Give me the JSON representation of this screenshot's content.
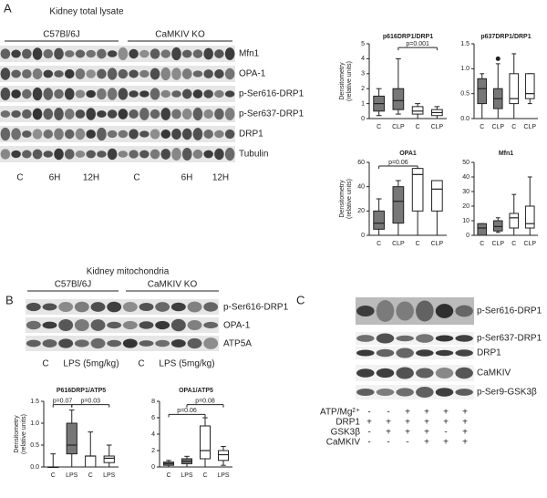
{
  "panels": {
    "A": {
      "label": "A",
      "title": "Kidney total lysate",
      "groups": [
        "C57Bl/6J",
        "CaMKIV KO"
      ],
      "rows": [
        "Mfn1",
        "OPA-1",
        "p-Ser616-DRP1",
        "p-Ser637-DRP1",
        "DRP1",
        "Tubulin"
      ],
      "lanes": [
        "C",
        "6H",
        "12H",
        "C",
        "6H",
        "12H"
      ]
    },
    "B": {
      "label": "B",
      "title": "Kidney mitochondria",
      "groups": [
        "C57Bl/6J",
        "CaMKIV KO"
      ],
      "rows": [
        "p-Ser616-DRP1",
        "OPA-1",
        "ATP5A"
      ],
      "lanes": [
        "C",
        "LPS (5mg/kg)",
        "C",
        "LPS (5mg/kg)"
      ]
    },
    "C": {
      "label": "C",
      "rows": [
        "p-Ser616-DRP1",
        "p-Ser637-DRP1",
        "DRP1",
        "CaMKIV",
        "p-Ser9-GSK3β"
      ],
      "conditions": [
        {
          "name": "ATP/Mg²⁺",
          "signs": [
            "-",
            "-",
            "+",
            "+",
            "+",
            "+"
          ]
        },
        {
          "name": "DRP1",
          "signs": [
            "+",
            "+",
            "+",
            "+",
            "+",
            "+"
          ]
        },
        {
          "name": "GSK3β",
          "signs": [
            "-",
            "+",
            "+",
            "+",
            "-",
            "+"
          ]
        },
        {
          "name": "CaMKIV",
          "signs": [
            "-",
            "-",
            "-",
            "+",
            "+",
            "+"
          ]
        }
      ]
    }
  },
  "charts": [
    {
      "type": "box",
      "title": "p616DRP1/DRP1",
      "ylabel": [
        "Densitometry",
        "(relative units)"
      ],
      "categories": [
        "C",
        "CLP",
        "C",
        "CLP"
      ],
      "ylim": [
        0,
        5
      ],
      "yticks": [
        0,
        1,
        2,
        3,
        4,
        5
      ],
      "boxes": [
        {
          "min": 0.2,
          "q1": 0.5,
          "median": 1,
          "q3": 1.5,
          "max": 2,
          "color": "#777"
        },
        {
          "min": 0.3,
          "q1": 0.6,
          "median": 1.2,
          "q3": 2,
          "max": 4,
          "color": "#777"
        },
        {
          "min": 0,
          "q1": 0.3,
          "median": 0.5,
          "q3": 0.8,
          "max": 1,
          "color": "#fff"
        },
        {
          "min": 0,
          "q1": 0.2,
          "median": 0.4,
          "q3": 0.6,
          "max": 0.8,
          "color": "#fff"
        }
      ],
      "annotations": [
        "p=0.001"
      ]
    },
    {
      "type": "box",
      "title": "p637DRP1/DRP1",
      "categories": [
        "C",
        "CLP",
        "C",
        "CLP"
      ],
      "ylim": [
        0,
        1.5
      ],
      "yticks": [
        {
          "value": 0,
          "label": "0.0"
        },
        0.5,
        {
          "value": 1,
          "label": "1.0"
        },
        1.5
      ],
      "boxes": [
        {
          "min": 0,
          "q1": 0.3,
          "median": 0.6,
          "q3": 0.8,
          "max": 0.9,
          "color": "#777"
        },
        {
          "min": 0,
          "q1": 0.2,
          "median": 0.4,
          "q3": 0.6,
          "max": 1.1,
          "color": "#777",
          "outliers": [
            1.2
          ]
        },
        {
          "min": 0,
          "q1": 0.3,
          "median": 0.4,
          "q3": 0.9,
          "max": 1.3,
          "color": "#fff"
        },
        {
          "min": 0.3,
          "q1": 0.4,
          "median": 0.5,
          "q3": 0.9,
          "max": 0.9,
          "color": "#fff"
        }
      ]
    },
    {
      "type": "box",
      "title": "OPA1",
      "ylabel": [
        "Densitometry",
        "(relative units)"
      ],
      "categories": [
        "C",
        "CLP",
        "C",
        "CLP"
      ],
      "ylim": [
        0,
        60
      ],
      "yticks": [
        0,
        20,
        40,
        60
      ],
      "boxes": [
        {
          "min": 0,
          "q1": 5,
          "median": 10,
          "q3": 20,
          "max": 30,
          "color": "#777"
        },
        {
          "min": 0,
          "q1": 10,
          "median": 28,
          "q3": 40,
          "max": 45,
          "color": "#777"
        },
        {
          "min": 0,
          "q1": 20,
          "median": 50,
          "q3": 55,
          "max": 55,
          "color": "#fff"
        },
        {
          "min": 0,
          "q1": 20,
          "median": 38,
          "q3": 45,
          "max": 45,
          "color": "#fff"
        }
      ],
      "annotations": [
        "p=0.06"
      ]
    },
    {
      "type": "box",
      "title": "Mfn1",
      "categories": [
        "C",
        "CLP",
        "C",
        "CLP"
      ],
      "ylim": [
        0,
        50
      ],
      "yticks": [
        0,
        10,
        20,
        30,
        40,
        50
      ],
      "boxes": [
        {
          "min": 0,
          "q1": 0,
          "median": 5,
          "q3": 8,
          "max": 8,
          "color": "#777"
        },
        {
          "min": 2,
          "q1": 3,
          "median": 6,
          "q3": 10,
          "max": 12,
          "color": "#777"
        },
        {
          "min": 0,
          "q1": 5,
          "median": 12,
          "q3": 15,
          "max": 28,
          "color": "#fff"
        },
        {
          "min": 0,
          "q1": 5,
          "median": 8,
          "q3": 20,
          "max": 40,
          "color": "#fff"
        }
      ]
    },
    {
      "type": "box",
      "title": "P616DRP1/ATP5",
      "ylabel": [
        "Densitometry",
        "(relative units)"
      ],
      "categories": [
        "C",
        "LPS",
        "C",
        "LPS"
      ],
      "ylim": [
        0,
        1.5
      ],
      "yticks": [
        {
          "value": 0,
          "label": "0.0"
        },
        0.5,
        {
          "value": 1,
          "label": "1.0"
        },
        1.5
      ],
      "boxes": [
        {
          "min": 0,
          "q1": 0,
          "median": 0,
          "q3": 0,
          "max": 0.3,
          "color": "#fff"
        },
        {
          "min": 0,
          "q1": 0.3,
          "median": 0.5,
          "q3": 1.0,
          "max": 1.3,
          "color": "#777"
        },
        {
          "min": 0,
          "q1": 0,
          "median": 0.25,
          "q3": 0.25,
          "max": 0.8,
          "color": "#fff"
        },
        {
          "min": 0,
          "q1": 0.1,
          "median": 0.2,
          "q3": 0.25,
          "max": 0.5,
          "color": "#fff"
        }
      ],
      "annotations": [
        "p=0.07",
        "p=0.03"
      ]
    },
    {
      "type": "box",
      "title": "OPA1/ATP5",
      "categories": [
        "C",
        "LPS",
        "C",
        "LPS"
      ],
      "ylim": [
        0,
        8
      ],
      "yticks": [
        0,
        2,
        4,
        6,
        8
      ],
      "boxes": [
        {
          "min": 0,
          "q1": 0.2,
          "median": 0.4,
          "q3": 0.6,
          "max": 0.8,
          "color": "#777"
        },
        {
          "min": 0,
          "q1": 0.4,
          "median": 0.7,
          "q3": 1.0,
          "max": 1.3,
          "color": "#777"
        },
        {
          "min": 0,
          "q1": 1,
          "median": 2,
          "q3": 5,
          "max": 6,
          "color": "#fff"
        },
        {
          "min": 0.2,
          "q1": 0.8,
          "median": 1.5,
          "q3": 2,
          "max": 2.5,
          "color": "#fff"
        }
      ],
      "annotations": [
        "p=0.06",
        "p=0.08"
      ]
    }
  ]
}
